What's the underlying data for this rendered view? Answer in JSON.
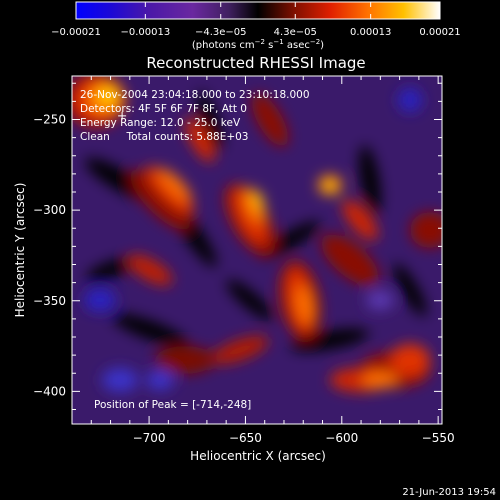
{
  "chart_data": {
    "type": "heatmap",
    "title": "Reconstructed RHESSI Image",
    "xlabel": "Heliocentric X (arcsec)",
    "ylabel": "Heliocentric Y (arcsec)",
    "xlim": [
      -740,
      -548
    ],
    "ylim": [
      -418,
      -226
    ],
    "x_ticks": [
      -700,
      -650,
      -600,
      -550
    ],
    "x_tick_labels": [
      "−700",
      "−650",
      "−600",
      "−550"
    ],
    "y_ticks": [
      -250,
      -300,
      -350,
      -400
    ],
    "y_tick_labels": [
      "−250",
      "−300",
      "−350",
      "−400"
    ],
    "colorbar": {
      "ticks": [
        -0.00021,
        -0.00013,
        -4.3e-05,
        4.3e-05,
        0.00013,
        0.00021
      ],
      "tick_labels": [
        "−0.00021",
        "−0.00013",
        "−4.3e−05",
        "4.3e−05",
        "0.00013",
        "0.00021"
      ],
      "range": [
        -0.00021,
        0.00021
      ],
      "unit_main": "(photons cm",
      "unit_exp1": "−2",
      "unit_mid": " s",
      "unit_exp2": "−1",
      "unit_tail": " asec",
      "unit_exp3": "−2",
      "unit_close": ")"
    },
    "annotations": [
      "26-Nov-2004 23:04:18.000 to 23:10:18.000",
      "Detectors: 4F 5F 6F 7F 8F, Att 0",
      "Energy Range: 12.0 - 25.0 keV",
      "Clean     Total counts: 5.88E+03"
    ],
    "peak_label": "Position of Peak = [-714,-248]",
    "peak": [
      -714,
      -248
    ],
    "grid": false
  },
  "footer": {
    "date": "21-Jun-2013 19:54"
  }
}
